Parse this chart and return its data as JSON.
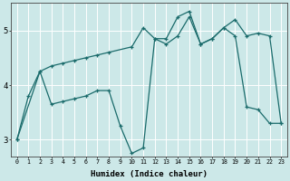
{
  "xlabel": "Humidex (Indice chaleur)",
  "background_color": "#cce8e8",
  "line_color": "#1a6b6b",
  "grid_color": "#ffffff",
  "xlim": [
    -0.5,
    23.5
  ],
  "ylim": [
    2.7,
    5.5
  ],
  "xticks": [
    0,
    1,
    2,
    3,
    4,
    5,
    6,
    7,
    8,
    9,
    10,
    11,
    12,
    13,
    14,
    15,
    16,
    17,
    18,
    19,
    20,
    21,
    22,
    23
  ],
  "yticks": [
    3,
    4,
    5
  ],
  "line1_x": [
    0,
    1,
    2,
    3,
    4,
    5,
    6,
    7,
    8,
    9,
    10,
    11,
    12,
    13,
    14,
    15,
    16,
    17,
    18,
    19,
    20,
    21,
    22,
    23
  ],
  "line1_y": [
    3.0,
    3.8,
    4.25,
    3.65,
    3.7,
    3.75,
    3.8,
    3.9,
    3.9,
    3.25,
    2.75,
    2.85,
    4.85,
    4.75,
    4.9,
    5.25,
    4.75,
    4.85,
    5.05,
    4.9,
    3.6,
    3.55,
    3.3,
    3.3
  ],
  "line2_x": [
    0,
    2,
    3,
    4,
    5,
    6,
    7,
    8,
    10,
    11,
    12,
    13,
    14,
    15,
    16,
    17,
    18,
    19,
    20,
    21,
    22,
    23
  ],
  "line2_y": [
    3.0,
    4.25,
    4.35,
    4.4,
    4.45,
    4.5,
    4.55,
    4.6,
    4.7,
    5.05,
    4.85,
    4.85,
    5.25,
    5.35,
    4.75,
    4.85,
    5.05,
    5.2,
    4.9,
    4.95,
    4.9,
    3.3
  ]
}
